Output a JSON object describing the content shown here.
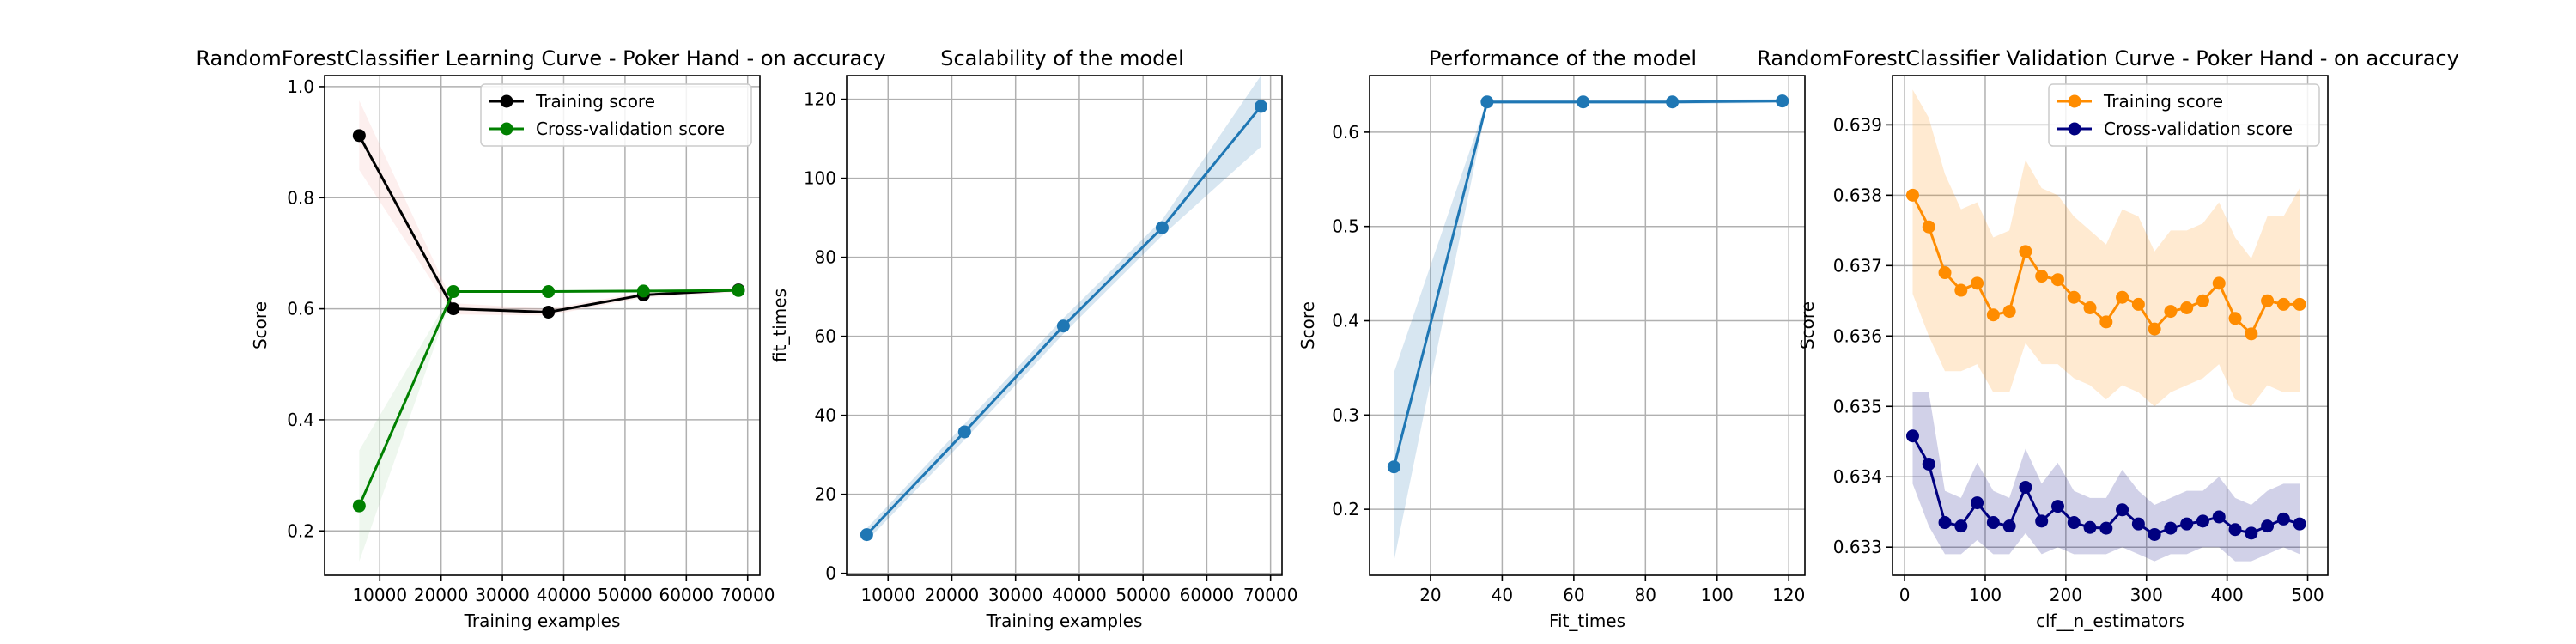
{
  "colors": {
    "training_lc": "#000000",
    "cv_lc": "#008000",
    "training_band_lc": "#f4a6a0",
    "cv_band_lc": "#9fd49f",
    "blue": "#1f77b4",
    "training_vc": "#ff8c00",
    "cv_vc": "#000080",
    "grid": "#b0b0b0"
  },
  "chart_data": [
    {
      "id": "learning",
      "type": "line",
      "title": "RandomForestClassifier Learning Curve - Poker Hand - on accuracy",
      "xlabel": "Training examples",
      "ylabel": "Score",
      "xlim": [
        1000,
        72000
      ],
      "ylim": [
        0.12,
        1.02
      ],
      "xticks": [
        10000,
        20000,
        30000,
        40000,
        50000,
        60000,
        70000
      ],
      "yticks": [
        0.2,
        0.4,
        0.6,
        0.8,
        1.0
      ],
      "grid": true,
      "legend": "upper right",
      "x": [
        6650,
        22000,
        37500,
        53000,
        68500
      ],
      "series": [
        {
          "name": "Training score",
          "color_key": "training_lc",
          "band_key": "training_band_lc",
          "values": [
            0.912,
            0.6,
            0.594,
            0.625,
            0.634
          ],
          "lower": [
            0.85,
            0.59,
            0.588,
            0.62,
            0.63
          ],
          "upper": [
            0.975,
            0.61,
            0.6,
            0.63,
            0.638
          ]
        },
        {
          "name": "Cross-validation score",
          "color_key": "cv_lc",
          "band_key": "cv_band_lc",
          "values": [
            0.245,
            0.631,
            0.631,
            0.632,
            0.633
          ],
          "lower": [
            0.145,
            0.629,
            0.629,
            0.63,
            0.631
          ],
          "upper": [
            0.345,
            0.633,
            0.633,
            0.634,
            0.635
          ]
        }
      ]
    },
    {
      "id": "scalability",
      "type": "line",
      "title": "Scalability of the model",
      "xlabel": "Training examples",
      "ylabel": "fit_times",
      "xlim": [
        3500,
        71800
      ],
      "ylim": [
        -0.5,
        126
      ],
      "xticks": [
        10000,
        20000,
        30000,
        40000,
        50000,
        60000,
        70000
      ],
      "yticks": [
        0,
        20,
        40,
        60,
        80,
        100,
        120
      ],
      "grid": true,
      "x": [
        6650,
        22000,
        37500,
        53000,
        68500
      ],
      "series": [
        {
          "name": "",
          "color_key": "blue",
          "band_key": "blue",
          "values": [
            9.8,
            35.8,
            62.6,
            87.5,
            118.2
          ],
          "lower": [
            8.2,
            33.8,
            60.6,
            85.5,
            108.0
          ],
          "upper": [
            11.4,
            37.8,
            64.6,
            89.5,
            126.0
          ]
        }
      ]
    },
    {
      "id": "performance",
      "type": "line",
      "title": "Performance of the model",
      "xlabel": "Fit_times",
      "ylabel": "Score",
      "xlim": [
        3,
        124.5
      ],
      "ylim": [
        0.13,
        0.66
      ],
      "xticks": [
        20,
        40,
        60,
        80,
        100,
        120
      ],
      "yticks": [
        0.2,
        0.3,
        0.4,
        0.5,
        0.6
      ],
      "grid": true,
      "x": [
        9.8,
        35.8,
        62.6,
        87.5,
        118.2
      ],
      "series": [
        {
          "name": "",
          "color_key": "blue",
          "band_key": "blue",
          "values": [
            0.245,
            0.632,
            0.632,
            0.632,
            0.633
          ],
          "lower": [
            0.145,
            0.63,
            0.63,
            0.63,
            0.631
          ],
          "upper": [
            0.345,
            0.634,
            0.634,
            0.634,
            0.635
          ]
        }
      ]
    },
    {
      "id": "validation",
      "type": "line",
      "title": "RandomForestClassifier Validation Curve - Poker Hand - on accuracy",
      "xlabel": "clf__n_estimators",
      "ylabel": "Score",
      "xlim": [
        -15,
        525
      ],
      "ylim": [
        0.6326,
        0.6397
      ],
      "xticks": [
        0,
        100,
        200,
        300,
        400,
        500
      ],
      "yticks": [
        0.633,
        0.634,
        0.635,
        0.636,
        0.637,
        0.638,
        0.639
      ],
      "grid": true,
      "legend": "upper right",
      "x": [
        10,
        30,
        50,
        70,
        90,
        110,
        130,
        150,
        170,
        190,
        210,
        230,
        250,
        270,
        290,
        310,
        330,
        350,
        370,
        390,
        410,
        430,
        450,
        470,
        490
      ],
      "series": [
        {
          "name": "Training score",
          "color_key": "training_vc",
          "band_key": "training_vc",
          "values": [
            0.638,
            0.63755,
            0.6369,
            0.63665,
            0.63675,
            0.6363,
            0.63635,
            0.6372,
            0.63685,
            0.6368,
            0.63655,
            0.6364,
            0.6362,
            0.63655,
            0.63645,
            0.6361,
            0.63635,
            0.6364,
            0.6365,
            0.63675,
            0.63625,
            0.63603,
            0.6365,
            0.63645,
            0.63645
          ],
          "lower": [
            0.6366,
            0.636,
            0.6355,
            0.6355,
            0.6356,
            0.6352,
            0.6352,
            0.6359,
            0.6356,
            0.6356,
            0.6354,
            0.6353,
            0.6351,
            0.6353,
            0.6352,
            0.635,
            0.6352,
            0.6353,
            0.6354,
            0.6356,
            0.6351,
            0.635,
            0.6353,
            0.6352,
            0.6352
          ],
          "upper": [
            0.6395,
            0.6391,
            0.6383,
            0.6378,
            0.6379,
            0.6374,
            0.6375,
            0.6385,
            0.6381,
            0.638,
            0.6377,
            0.6375,
            0.6373,
            0.6378,
            0.6377,
            0.6372,
            0.6375,
            0.6375,
            0.6376,
            0.6379,
            0.6374,
            0.6371,
            0.6377,
            0.6377,
            0.6381
          ]
        },
        {
          "name": "Cross-validation score",
          "color_key": "cv_vc",
          "band_key": "cv_vc",
          "values": [
            0.63458,
            0.63418,
            0.63335,
            0.6333,
            0.63363,
            0.63335,
            0.6333,
            0.63385,
            0.63337,
            0.63358,
            0.63335,
            0.63328,
            0.63327,
            0.63353,
            0.63333,
            0.63318,
            0.63327,
            0.63333,
            0.63337,
            0.63343,
            0.63325,
            0.6332,
            0.6333,
            0.6334,
            0.63333
          ],
          "lower": [
            0.6339,
            0.6333,
            0.6329,
            0.6329,
            0.6331,
            0.6329,
            0.6329,
            0.6332,
            0.6329,
            0.633,
            0.6329,
            0.6329,
            0.6329,
            0.633,
            0.6329,
            0.6328,
            0.6329,
            0.6329,
            0.633,
            0.633,
            0.6328,
            0.6328,
            0.6329,
            0.633,
            0.6329
          ],
          "upper": [
            0.6352,
            0.6352,
            0.6338,
            0.6337,
            0.6342,
            0.6338,
            0.6337,
            0.6344,
            0.6339,
            0.6342,
            0.6338,
            0.6337,
            0.6337,
            0.6341,
            0.6338,
            0.6336,
            0.6337,
            0.6338,
            0.6338,
            0.634,
            0.6337,
            0.6336,
            0.6338,
            0.6339,
            0.6339
          ]
        }
      ]
    }
  ]
}
